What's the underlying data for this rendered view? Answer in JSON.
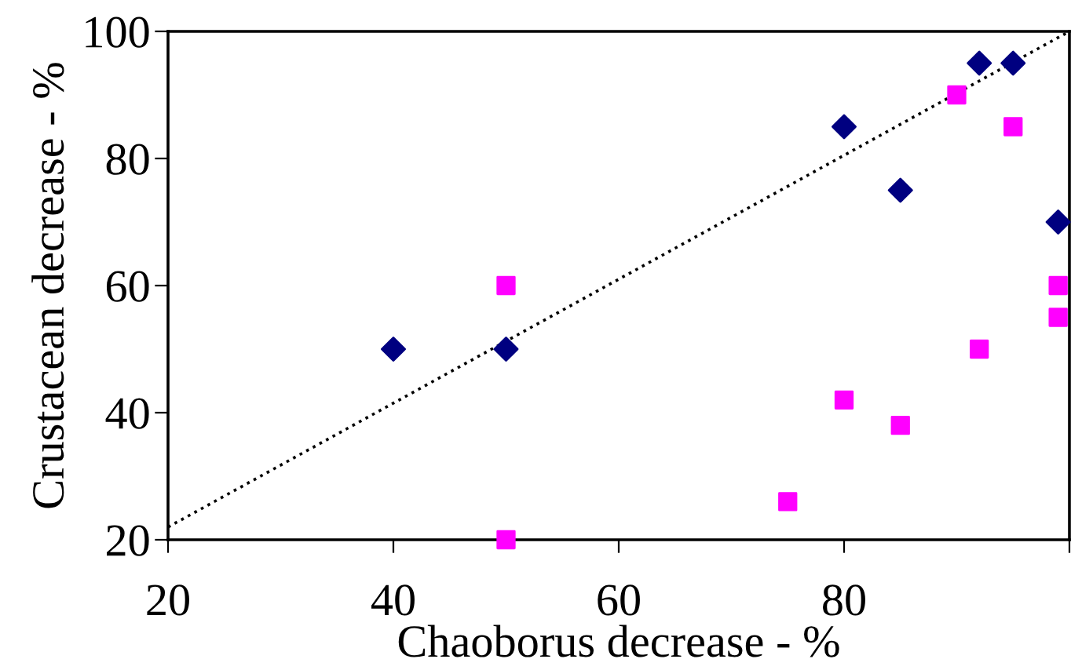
{
  "chart_data": {
    "type": "scatter",
    "xlabel": "Chaoborus decrease - %",
    "ylabel": "Crustacean decrease - %",
    "xlim": [
      20,
      100
    ],
    "xticks": [
      20,
      40,
      60,
      80,
      {
        "value": 100,
        "label": null
      }
    ],
    "ylim": [
      20,
      100
    ],
    "yticks": [
      20,
      40,
      60,
      80,
      100
    ],
    "grid": false,
    "legend": false,
    "series": [
      {
        "color": "#000080",
        "marker": "diamond",
        "x": [
          40,
          50,
          80,
          85,
          92,
          95,
          99
        ],
        "values": [
          50,
          50,
          85,
          75,
          95,
          95,
          70
        ]
      },
      {
        "color": "#ff00ff",
        "marker": "square",
        "x": [
          50,
          50,
          75,
          80,
          85,
          90,
          92,
          95,
          99,
          99
        ],
        "values": [
          60,
          20,
          26,
          42,
          38,
          90,
          50,
          85,
          60,
          55
        ]
      },
      {
        "type": "line",
        "color": "#000000",
        "line_style": "dotted",
        "marker": "none",
        "x": [
          20,
          100
        ],
        "values": [
          22,
          100
        ]
      }
    ]
  }
}
